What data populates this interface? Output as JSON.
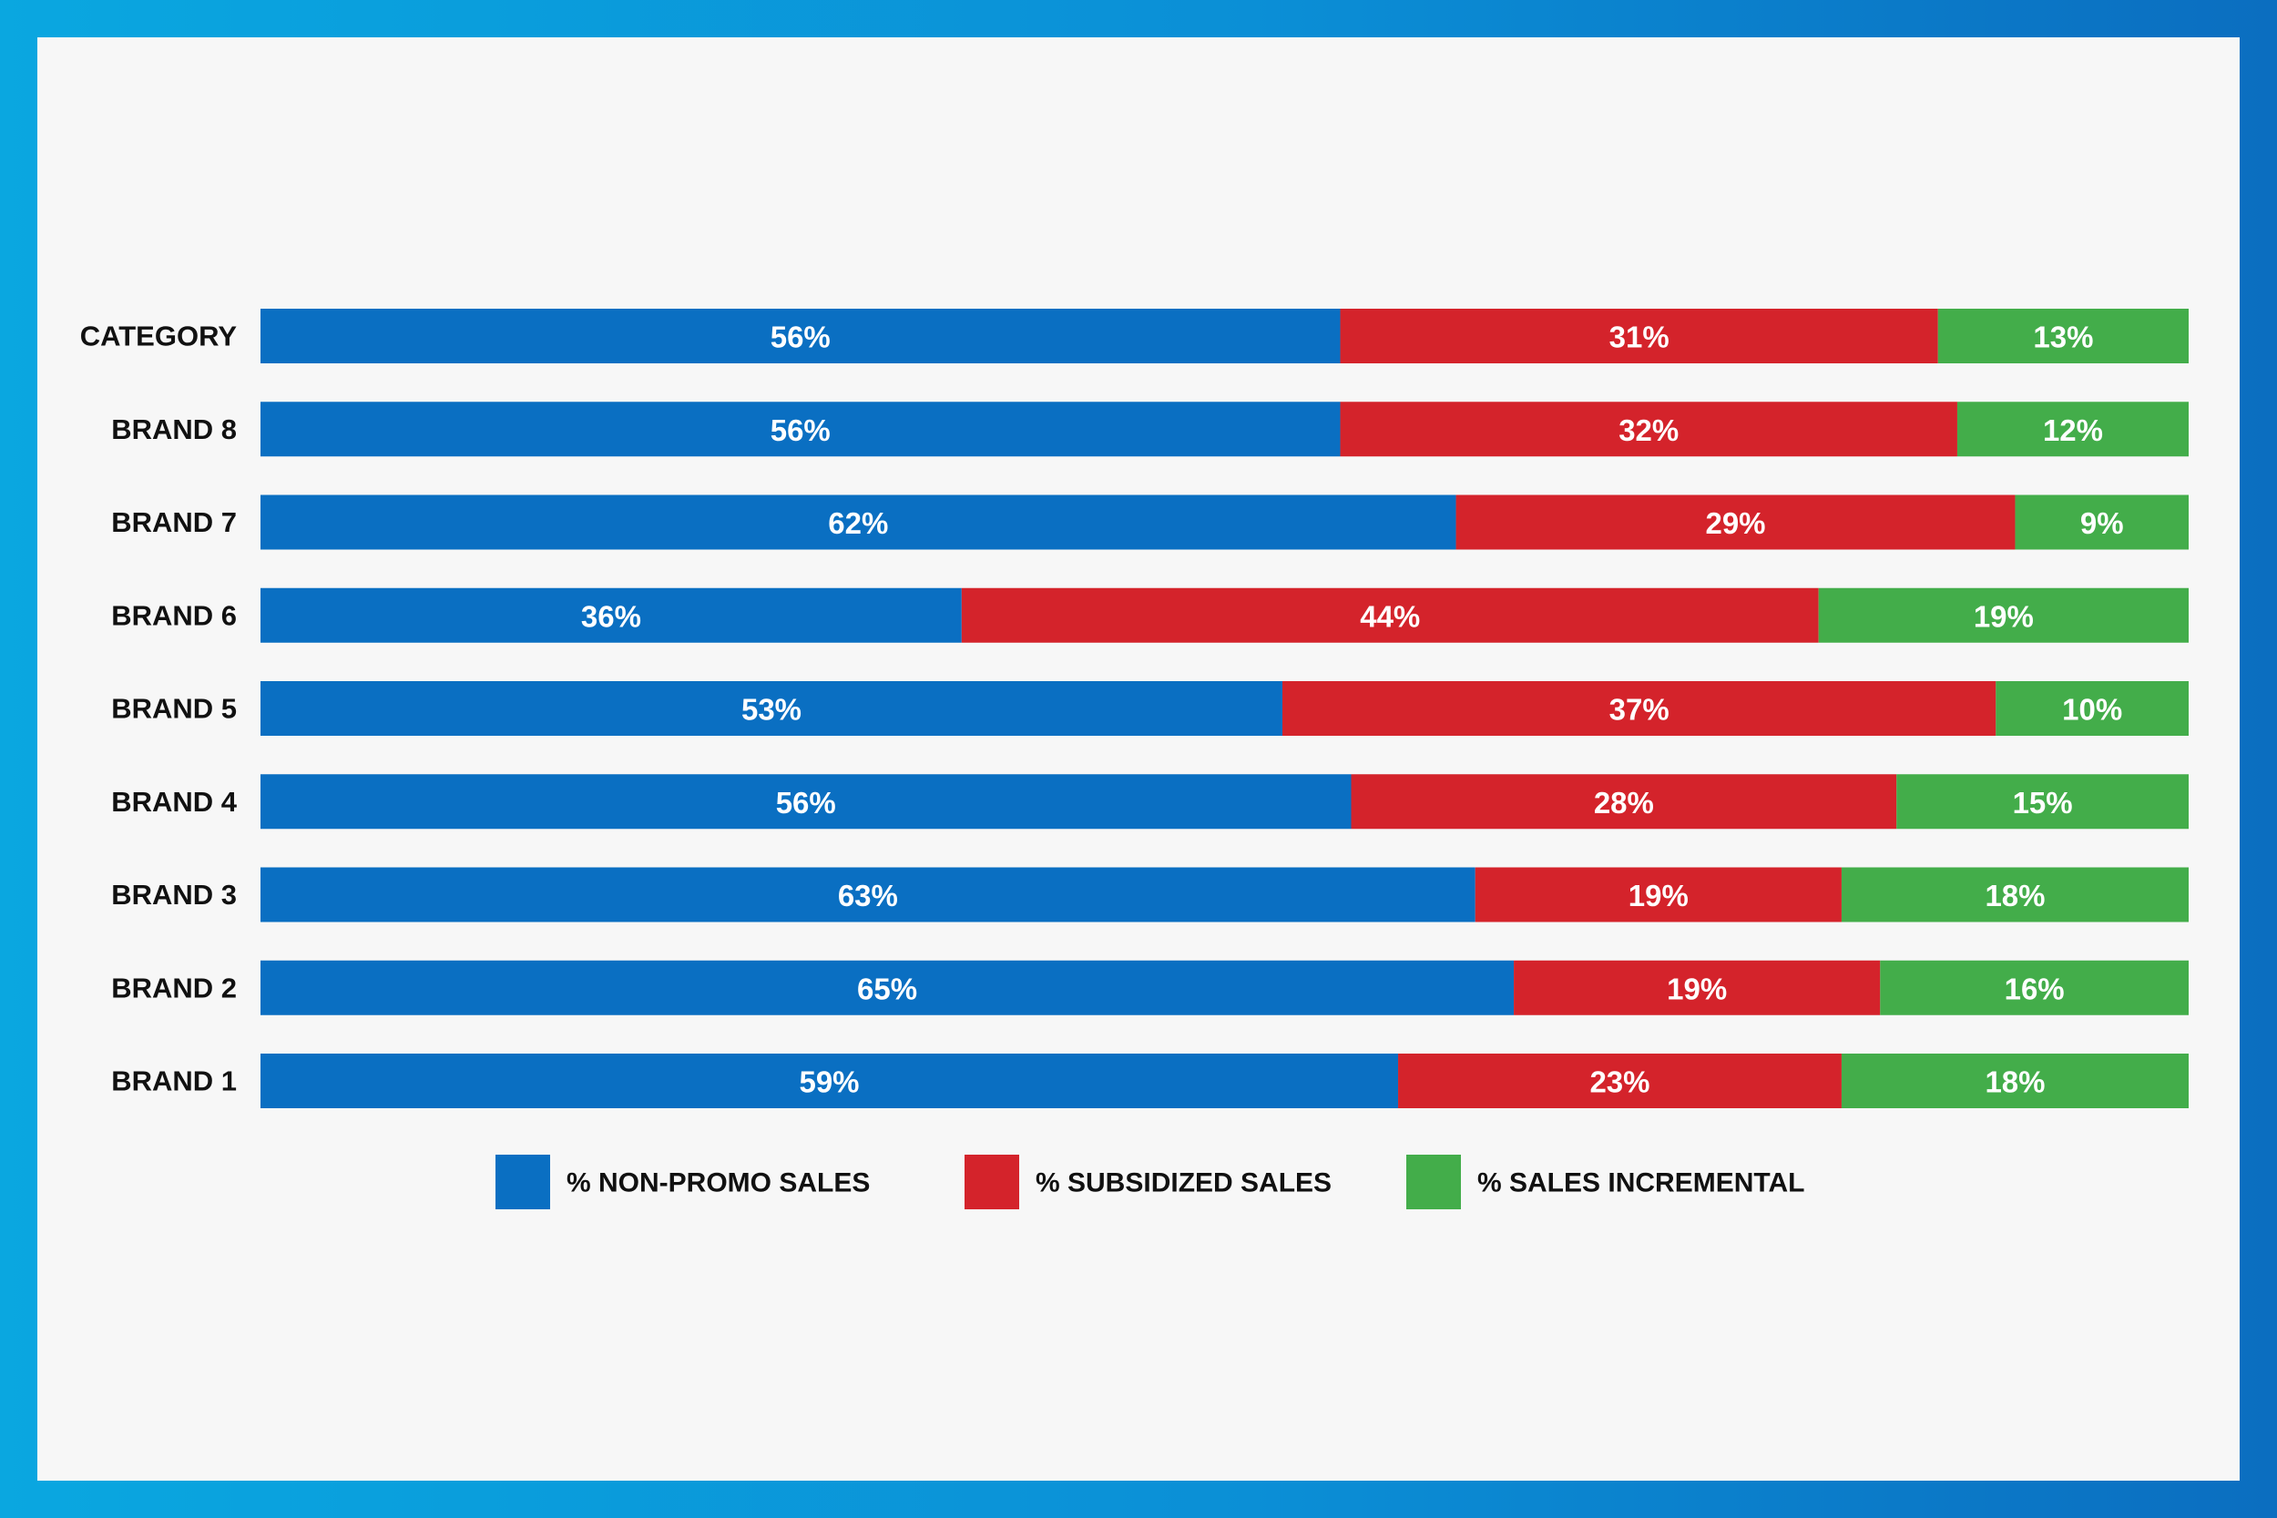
{
  "chart_data": {
    "type": "bar",
    "orientation": "horizontal",
    "stacked": true,
    "categories": [
      "CATEGORY",
      "BRAND 8",
      "BRAND 7",
      "BRAND 6",
      "BRAND 5",
      "BRAND 4",
      "BRAND 3",
      "BRAND 2",
      "BRAND 1"
    ],
    "series": [
      {
        "name": "% NON-PROMO SALES",
        "color": "#0a6fc2",
        "values": [
          56,
          56,
          62,
          36,
          53,
          56,
          63,
          65,
          59
        ],
        "labels": [
          "56%",
          "56%",
          "62%",
          "36%",
          "53%",
          "56%",
          "63%",
          "65%",
          "59%"
        ]
      },
      {
        "name": "% SUBSIDIZED SALES",
        "color": "#d4232b",
        "values": [
          31,
          32,
          29,
          44,
          37,
          28,
          19,
          19,
          23
        ],
        "labels": [
          "31%",
          "32%",
          "29%",
          "44%",
          "37%",
          "28%",
          "19%",
          "19%",
          "23%"
        ]
      },
      {
        "name": "% SALES INCREMENTAL",
        "color": "#43ad4a",
        "values": [
          13,
          12,
          9,
          19,
          10,
          15,
          18,
          16,
          18
        ],
        "labels": [
          "13%",
          "12%",
          "9%",
          "19%",
          "10%",
          "15%",
          "18%",
          "16%",
          "18%"
        ]
      }
    ],
    "legend_position": "bottom-center",
    "grid": false
  }
}
